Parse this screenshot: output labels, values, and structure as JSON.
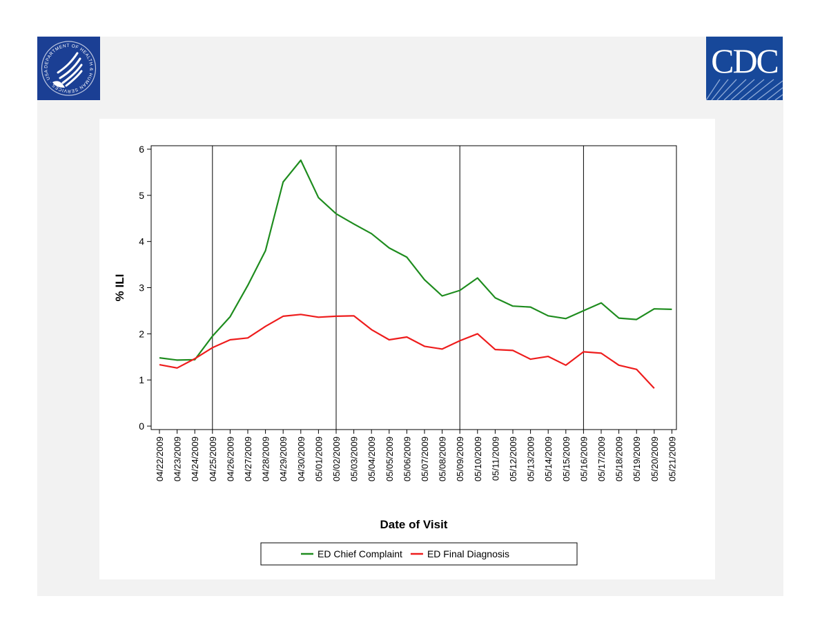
{
  "logos": {
    "left": {
      "name": "HHS seal",
      "ring_text": "DEPARTMENT OF HEALTH & HUMAN SERVICES · USA"
    },
    "right": {
      "name": "CDC",
      "text": "CDC"
    }
  },
  "chart_data": {
    "type": "line",
    "title": "",
    "xlabel": "Date of Visit",
    "ylabel": "% ILI",
    "ylim": [
      0,
      6
    ],
    "yticks": [
      0,
      1,
      2,
      3,
      4,
      5,
      6
    ],
    "grid": false,
    "legend_position": "bottom",
    "categories": [
      "04/22/2009",
      "04/23/2009",
      "04/24/2009",
      "04/25/2009",
      "04/26/2009",
      "04/27/2009",
      "04/28/2009",
      "04/29/2009",
      "04/30/2009",
      "05/01/2009",
      "05/02/2009",
      "05/03/2009",
      "05/04/2009",
      "05/05/2009",
      "05/06/2009",
      "05/07/2009",
      "05/08/2009",
      "05/09/2009",
      "05/10/2009",
      "05/11/2009",
      "05/12/2009",
      "05/13/2009",
      "05/14/2009",
      "05/15/2009",
      "05/16/2009",
      "05/17/2009",
      "05/18/2009",
      "05/19/2009",
      "05/20/2009",
      "05/21/2009"
    ],
    "reference_lines": [
      "04/25/2009",
      "05/02/2009",
      "05/09/2009",
      "05/16/2009"
    ],
    "series": [
      {
        "name": "ED Chief Complaint",
        "color": "#1e8c1e",
        "values": [
          1.48,
          1.43,
          1.44,
          1.95,
          2.37,
          3.05,
          3.8,
          5.29,
          5.76,
          4.95,
          4.6,
          4.38,
          4.17,
          3.86,
          3.66,
          3.17,
          2.82,
          2.94,
          3.21,
          2.78,
          2.6,
          2.58,
          2.39,
          2.33,
          2.5,
          2.67,
          2.34,
          2.31,
          2.54,
          2.53
        ]
      },
      {
        "name": "ED Final Diagnosis",
        "color": "#ee1c1c",
        "values": [
          1.33,
          1.26,
          1.46,
          1.7,
          1.87,
          1.91,
          2.16,
          2.38,
          2.42,
          2.36,
          2.38,
          2.39,
          2.09,
          1.87,
          1.93,
          1.73,
          1.67,
          1.85,
          2.0,
          1.66,
          1.64,
          1.45,
          1.51,
          1.32,
          1.61,
          1.58,
          1.32,
          1.23,
          0.82,
          null
        ]
      }
    ]
  }
}
